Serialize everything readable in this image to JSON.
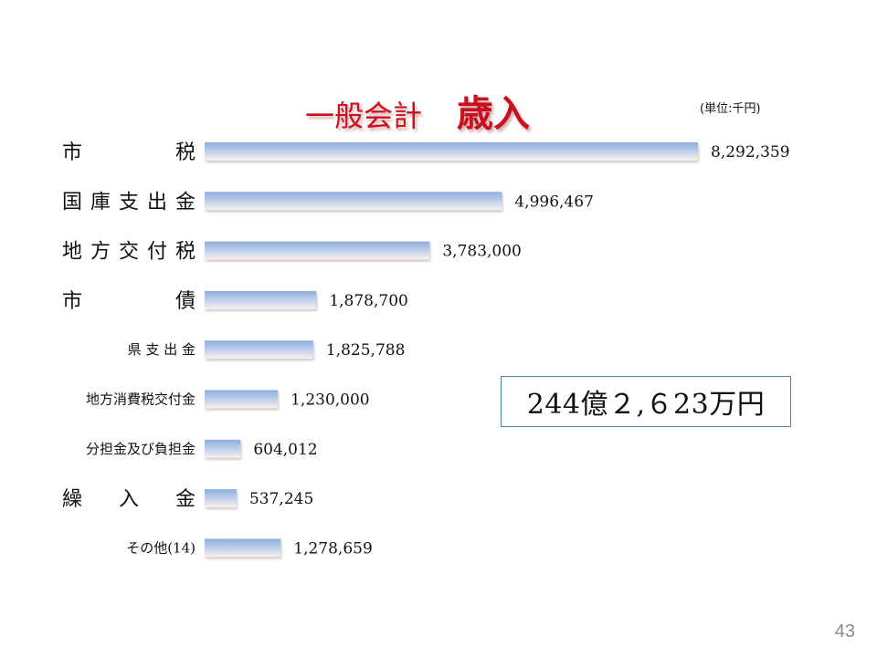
{
  "slide": {
    "title_main": "一般会計",
    "title_sub": "歳入",
    "unit": "(単位:千円)",
    "total": "244億２,６23万円",
    "page_number": "43"
  },
  "chart_data": {
    "type": "bar",
    "orientation": "horizontal",
    "categories": [
      "市　　　税",
      "国庫支出金",
      "地方交付税",
      "市　　　債",
      "県 支 出 金",
      "地方消費税交付金",
      "分担金及び負担金",
      "繰　入　金",
      "その他(14)"
    ],
    "values": [
      8292359,
      4996467,
      3783000,
      1878700,
      1825788,
      1230000,
      604012,
      537245,
      1278659
    ],
    "value_labels": [
      "8,292,359",
      "4,996,467",
      "3,783,000",
      "1,878,700",
      "1,825,788",
      "1,230,000",
      "604,012",
      "537,245",
      "1,278,659"
    ],
    "xlim": [
      0,
      8292359
    ],
    "bar_colors": [
      "#8eaedc",
      "#ffffff"
    ],
    "grid": false,
    "legend": "none"
  }
}
